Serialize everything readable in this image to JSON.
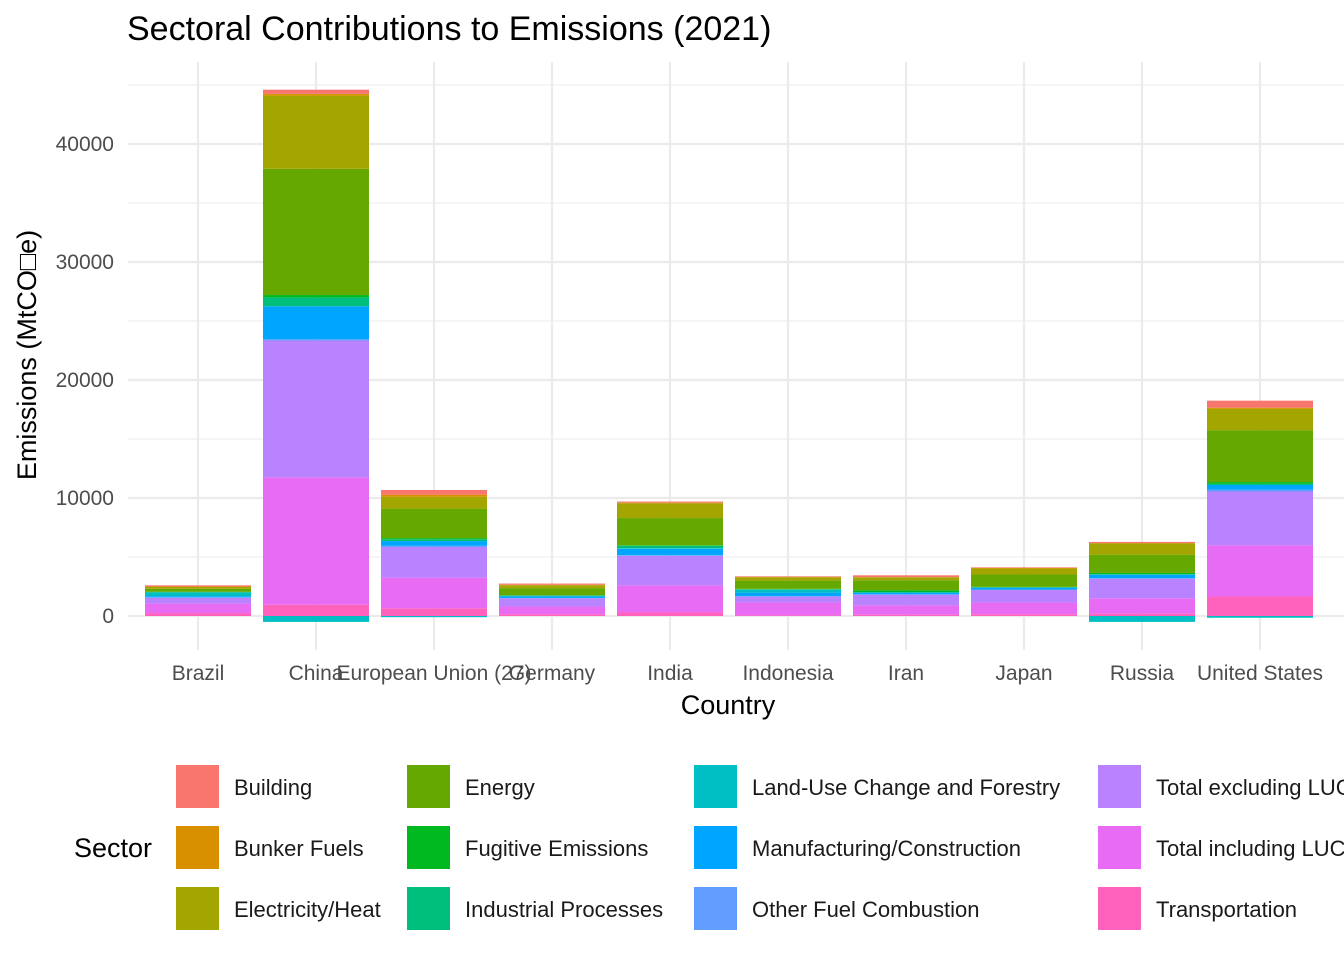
{
  "chart_data": {
    "type": "bar",
    "stacked": true,
    "title": "Sectoral Contributions to Emissions (2021)",
    "xlabel": "Country",
    "ylabel": "Emissions (MtCO□e)",
    "ylim": [
      -1000,
      46500
    ],
    "yticks": [
      0,
      10000,
      20000,
      30000,
      40000
    ],
    "ytick_labels": [
      "0",
      "10000",
      "20000",
      "30000",
      "40000"
    ],
    "grid": true,
    "legend_title": "Sector",
    "legend_position": "bottom",
    "categories": [
      "Brazil",
      "China",
      "European Union (27)",
      "Germany",
      "India",
      "Indonesia",
      "Iran",
      "Japan",
      "Russia",
      "United States"
    ],
    "series": [
      {
        "name": "Building",
        "color": "#F8766D",
        "values": [
          100,
          350,
          400,
          100,
          100,
          50,
          150,
          50,
          100,
          600
        ]
      },
      {
        "name": "Bunker Fuels",
        "color": "#D89000",
        "values": [
          40,
          150,
          180,
          40,
          50,
          40,
          20,
          60,
          30,
          100
        ]
      },
      {
        "name": "Electricity/Heat",
        "color": "#A3A500",
        "values": [
          160,
          6200,
          1000,
          250,
          1250,
          280,
          250,
          500,
          950,
          1800
        ]
      },
      {
        "name": "Energy",
        "color": "#64A800",
        "values": [
          250,
          10700,
          2500,
          600,
          2300,
          700,
          850,
          1050,
          1550,
          4400
        ]
      },
      {
        "name": "Fugitive Emissions",
        "color": "#00B81F",
        "values": [
          20,
          200,
          100,
          30,
          50,
          30,
          150,
          20,
          100,
          150
        ]
      },
      {
        "name": "Industrial Processes",
        "color": "#00BF7D",
        "values": [
          50,
          750,
          150,
          50,
          200,
          40,
          50,
          50,
          50,
          100
        ]
      },
      {
        "name": "Land-Use Change and Forestry",
        "color": "#00BFC4",
        "values": [
          300,
          -500,
          -100,
          0,
          50,
          250,
          0,
          0,
          -500,
          -150
        ]
      },
      {
        "name": "Manufacturing/Construction",
        "color": "#00A5FF",
        "values": [
          100,
          2800,
          400,
          150,
          550,
          300,
          150,
          150,
          300,
          400
        ]
      },
      {
        "name": "Other Fuel Combustion",
        "color": "#619CFF",
        "values": [
          30,
          100,
          100,
          30,
          50,
          30,
          30,
          50,
          50,
          150
        ]
      },
      {
        "name": "Total excluding LUCF",
        "color": "#B983FF",
        "values": [
          500,
          11600,
          2600,
          700,
          2500,
          500,
          900,
          1050,
          1650,
          4550
        ]
      },
      {
        "name": "Total including LUCF",
        "color": "#E76BF3",
        "values": [
          800,
          10800,
          2600,
          650,
          2300,
          1100,
          800,
          1000,
          1300,
          4350
        ]
      },
      {
        "name": "Transportation",
        "color": "#FF62BC",
        "values": [
          250,
          950,
          650,
          150,
          300,
          50,
          100,
          150,
          200,
          1650
        ]
      }
    ]
  }
}
